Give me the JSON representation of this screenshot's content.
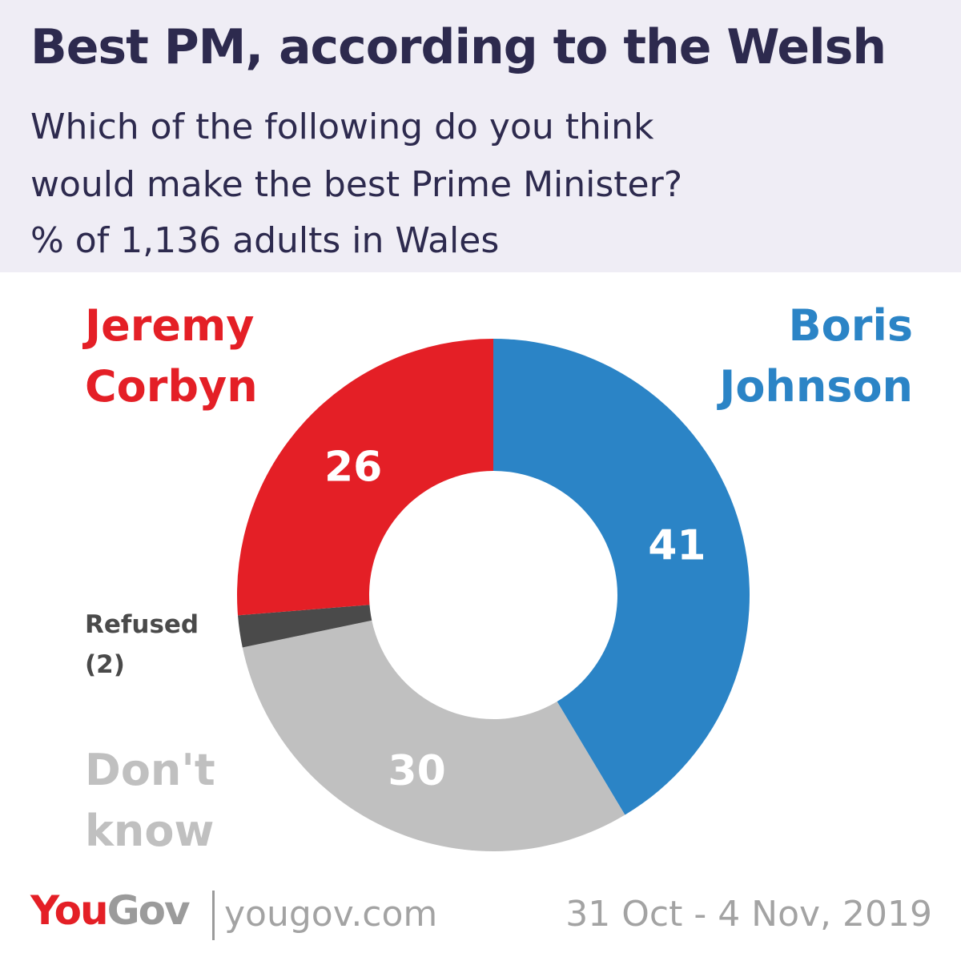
{
  "header": {
    "title": "Best PM, according to the Welsh",
    "subtitle_lines": [
      "Which of the following do you think",
      "would make the best Prime Minister?",
      "% of 1,136 adults in Wales"
    ]
  },
  "chart_data": {
    "type": "pie",
    "donut": true,
    "title": "Best PM, according to the Welsh",
    "slices": [
      {
        "name_lines": [
          "Boris",
          "Johnson"
        ],
        "value": 41,
        "label": "41",
        "color": "#2b84c6"
      },
      {
        "name_lines": [
          "Don't",
          "know"
        ],
        "value": 30,
        "label": "30",
        "color": "#c0c0c0"
      },
      {
        "name_lines": [
          "Refused",
          "(2)"
        ],
        "value": 2,
        "label": "",
        "color": "#4a4a4a"
      },
      {
        "name_lines": [
          "Jeremy",
          "Corbyn"
        ],
        "value": 26,
        "label": "26",
        "color": "#e41f26"
      }
    ]
  },
  "footer": {
    "logo_you": "You",
    "logo_gov": "Gov",
    "url": "yougov.com",
    "date": "31 Oct - 4 Nov, 2019"
  },
  "colors": {
    "header_bg": "#efedf5",
    "title_text": "#2d2a4e",
    "footer_text": "#a3a3a3"
  }
}
